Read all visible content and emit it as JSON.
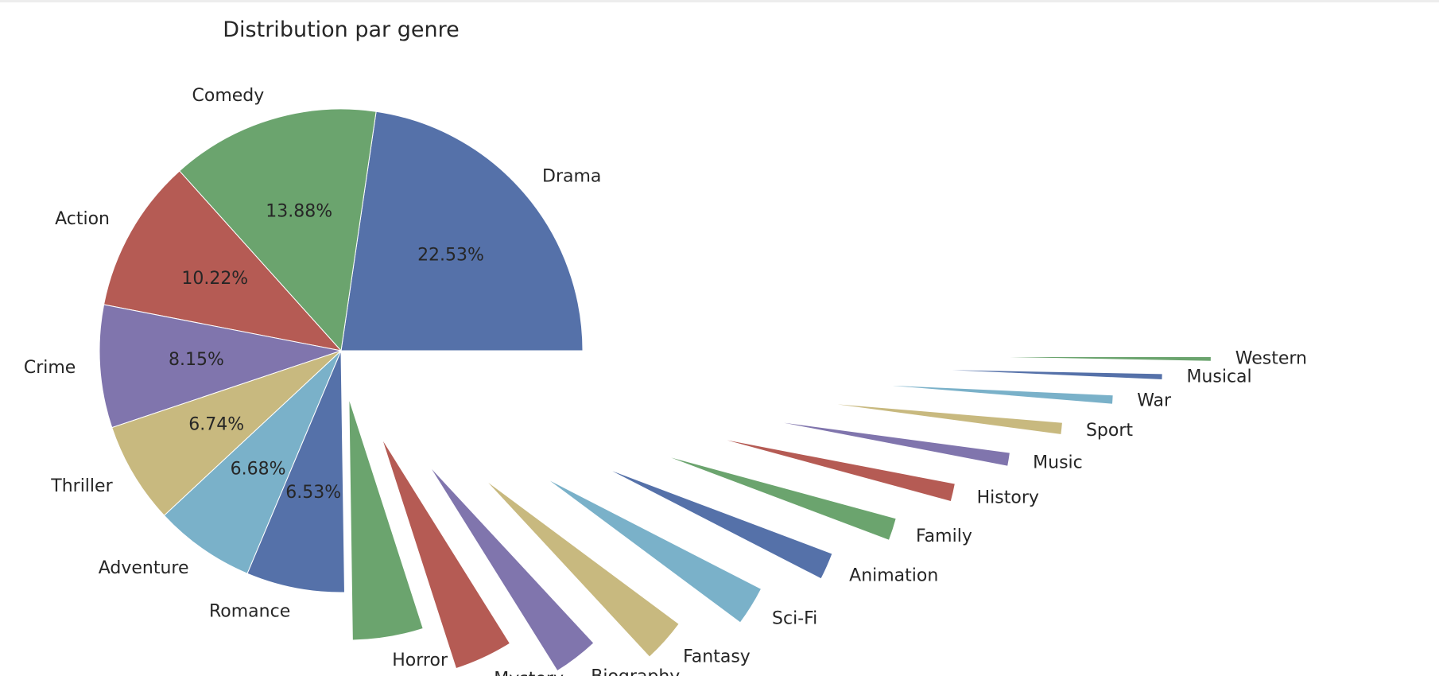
{
  "chart_data": {
    "type": "pie",
    "title": "Distribution par genre",
    "slices": [
      {
        "label": "Drama",
        "value": 22.53,
        "pct_label": "22.53%",
        "color": "#5571a9"
      },
      {
        "label": "Comedy",
        "value": 13.88,
        "pct_label": "13.88%",
        "color": "#6ba46e"
      },
      {
        "label": "Action",
        "value": 10.22,
        "pct_label": "10.22%",
        "color": "#b55b54"
      },
      {
        "label": "Crime",
        "value": 8.15,
        "pct_label": "8.15%",
        "color": "#8075ad"
      },
      {
        "label": "Thriller",
        "value": 6.74,
        "pct_label": "6.74%",
        "color": "#c8b97f"
      },
      {
        "label": "Adventure",
        "value": 6.68,
        "pct_label": "6.68%",
        "color": "#7ab1c9"
      },
      {
        "label": "Romance",
        "value": 6.53,
        "pct_label": "6.53%",
        "color": "#5571a9"
      },
      {
        "label": "Horror",
        "value": 4.7,
        "pct_label": "",
        "color": "#6ba46e"
      },
      {
        "label": "Mystery",
        "value": 3.9,
        "pct_label": "",
        "color": "#b55b54"
      },
      {
        "label": "Biography",
        "value": 3.0,
        "pct_label": "",
        "color": "#8075ad"
      },
      {
        "label": "Fantasy",
        "value": 2.9,
        "pct_label": "",
        "color": "#c8b97f"
      },
      {
        "label": "Sci-Fi",
        "value": 2.6,
        "pct_label": "",
        "color": "#7ab1c9"
      },
      {
        "label": "Animation",
        "value": 1.8,
        "pct_label": "",
        "color": "#5571a9"
      },
      {
        "label": "Family",
        "value": 1.5,
        "pct_label": "",
        "color": "#6ba46e"
      },
      {
        "label": "History",
        "value": 1.2,
        "pct_label": "",
        "color": "#b55b54"
      },
      {
        "label": "Music",
        "value": 0.9,
        "pct_label": "",
        "color": "#8075ad"
      },
      {
        "label": "Sport",
        "value": 0.8,
        "pct_label": "",
        "color": "#c8b97f"
      },
      {
        "label": "War",
        "value": 0.6,
        "pct_label": "",
        "color": "#7ab1c9"
      },
      {
        "label": "Musical",
        "value": 0.4,
        "pct_label": "",
        "color": "#5571a9"
      },
      {
        "label": "Western",
        "value": 0.3,
        "pct_label": "",
        "color": "#6ba46e"
      }
    ]
  }
}
